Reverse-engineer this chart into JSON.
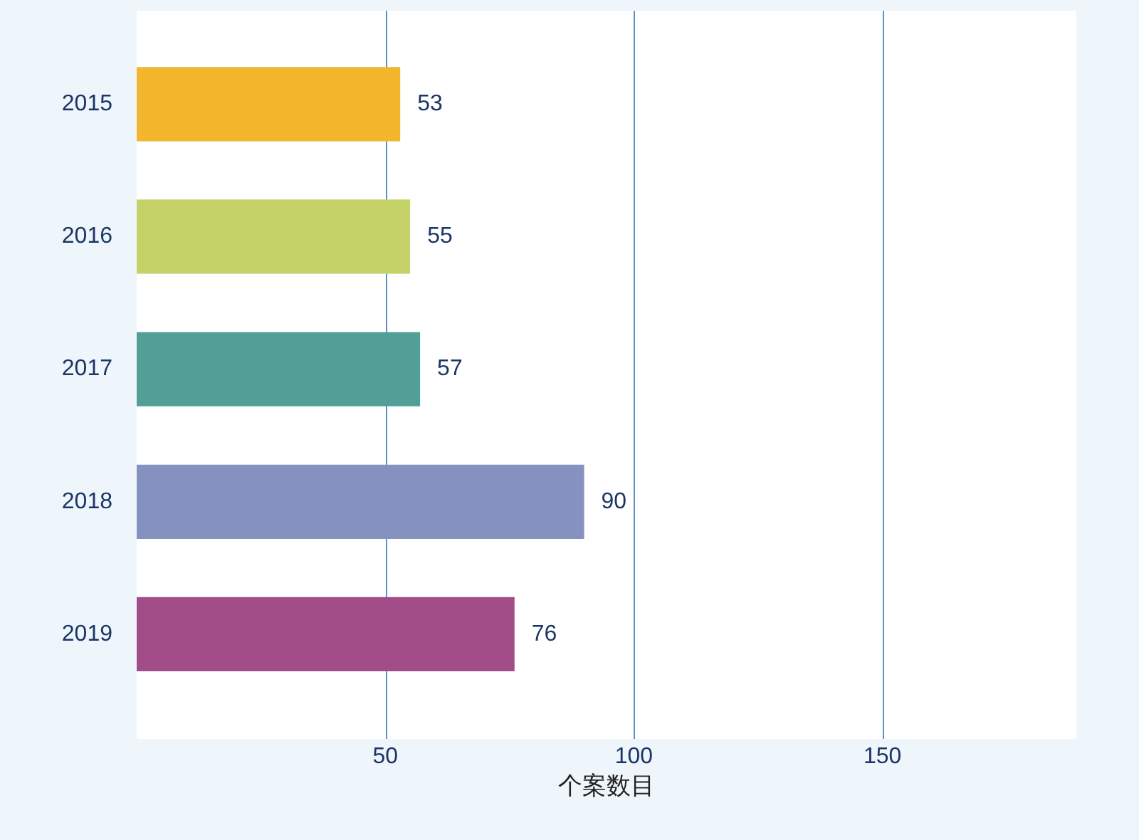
{
  "chart_data": {
    "type": "bar",
    "orientation": "horizontal",
    "categories": [
      "2015",
      "2016",
      "2017",
      "2018",
      "2019"
    ],
    "values": [
      53,
      55,
      57,
      90,
      76
    ],
    "colors": [
      "#f3b62c",
      "#c4d267",
      "#529f98",
      "#8592c0",
      "#a24c88"
    ],
    "xlabel": "个案数目",
    "xlim": [
      0,
      189
    ],
    "xticks": [
      50,
      100,
      150
    ],
    "grid": "x",
    "data_labels": true
  }
}
